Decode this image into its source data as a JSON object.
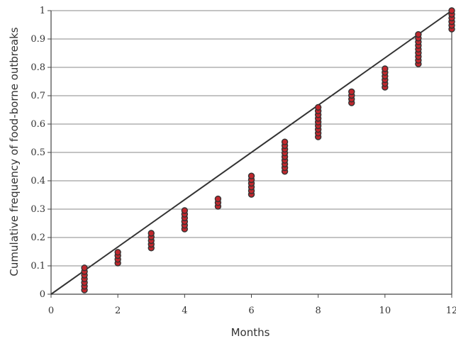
{
  "chart_data": {
    "type": "scatter",
    "xlabel": "Months",
    "ylabel": "Cumulative frequency of food-borne outbreaks",
    "xlim": [
      0,
      12
    ],
    "ylim": [
      0,
      1
    ],
    "x_ticks": [
      0,
      2,
      4,
      6,
      8,
      10,
      12
    ],
    "y_ticks": [
      0,
      0.1,
      0.2,
      0.3,
      0.4,
      0.5,
      0.6,
      0.7,
      0.8,
      0.9,
      1
    ],
    "x_tick_labels": [
      "0",
      "2",
      "4",
      "6",
      "8",
      "10",
      "12"
    ],
    "y_tick_labels": [
      "0",
      "0.1",
      "0.2",
      "0.3",
      "0.4",
      "0.5",
      "0.6",
      "0.7",
      "0.8",
      "0.9",
      "1"
    ],
    "grid": "horizontal",
    "reference_line": {
      "x": [
        0,
        12
      ],
      "y": [
        0,
        1
      ],
      "color": "#333333"
    },
    "marker_fill": "#c0272d",
    "marker_edge": "#333333",
    "series": [
      {
        "points": [
          {
            "x": 1,
            "y": 0.015
          },
          {
            "x": 1,
            "y": 0.028
          },
          {
            "x": 1,
            "y": 0.041
          },
          {
            "x": 1,
            "y": 0.054
          },
          {
            "x": 1,
            "y": 0.067
          },
          {
            "x": 1,
            "y": 0.08
          },
          {
            "x": 1,
            "y": 0.093
          },
          {
            "x": 2,
            "y": 0.11
          },
          {
            "x": 2,
            "y": 0.123
          },
          {
            "x": 2,
            "y": 0.136
          },
          {
            "x": 2,
            "y": 0.148
          },
          {
            "x": 3,
            "y": 0.163
          },
          {
            "x": 3,
            "y": 0.176
          },
          {
            "x": 3,
            "y": 0.189
          },
          {
            "x": 3,
            "y": 0.202
          },
          {
            "x": 3,
            "y": 0.215
          },
          {
            "x": 4,
            "y": 0.23
          },
          {
            "x": 4,
            "y": 0.243
          },
          {
            "x": 4,
            "y": 0.256
          },
          {
            "x": 4,
            "y": 0.269
          },
          {
            "x": 4,
            "y": 0.282
          },
          {
            "x": 4,
            "y": 0.295
          },
          {
            "x": 5,
            "y": 0.31
          },
          {
            "x": 5,
            "y": 0.323
          },
          {
            "x": 5,
            "y": 0.336
          },
          {
            "x": 6,
            "y": 0.352
          },
          {
            "x": 6,
            "y": 0.365
          },
          {
            "x": 6,
            "y": 0.378
          },
          {
            "x": 6,
            "y": 0.391
          },
          {
            "x": 6,
            "y": 0.404
          },
          {
            "x": 6,
            "y": 0.417
          },
          {
            "x": 7,
            "y": 0.433
          },
          {
            "x": 7,
            "y": 0.446
          },
          {
            "x": 7,
            "y": 0.459
          },
          {
            "x": 7,
            "y": 0.472
          },
          {
            "x": 7,
            "y": 0.485
          },
          {
            "x": 7,
            "y": 0.498
          },
          {
            "x": 7,
            "y": 0.511
          },
          {
            "x": 7,
            "y": 0.524
          },
          {
            "x": 7,
            "y": 0.537
          },
          {
            "x": 8,
            "y": 0.555
          },
          {
            "x": 8,
            "y": 0.568
          },
          {
            "x": 8,
            "y": 0.581
          },
          {
            "x": 8,
            "y": 0.594
          },
          {
            "x": 8,
            "y": 0.607
          },
          {
            "x": 8,
            "y": 0.62
          },
          {
            "x": 8,
            "y": 0.633
          },
          {
            "x": 8,
            "y": 0.646
          },
          {
            "x": 8,
            "y": 0.659
          },
          {
            "x": 9,
            "y": 0.675
          },
          {
            "x": 9,
            "y": 0.688
          },
          {
            "x": 9,
            "y": 0.701
          },
          {
            "x": 9,
            "y": 0.714
          },
          {
            "x": 10,
            "y": 0.73
          },
          {
            "x": 10,
            "y": 0.743
          },
          {
            "x": 10,
            "y": 0.756
          },
          {
            "x": 10,
            "y": 0.769
          },
          {
            "x": 10,
            "y": 0.782
          },
          {
            "x": 10,
            "y": 0.795
          },
          {
            "x": 11,
            "y": 0.812
          },
          {
            "x": 11,
            "y": 0.825
          },
          {
            "x": 11,
            "y": 0.838
          },
          {
            "x": 11,
            "y": 0.851
          },
          {
            "x": 11,
            "y": 0.864
          },
          {
            "x": 11,
            "y": 0.877
          },
          {
            "x": 11,
            "y": 0.89
          },
          {
            "x": 11,
            "y": 0.903
          },
          {
            "x": 11,
            "y": 0.916
          },
          {
            "x": 12,
            "y": 0.935
          },
          {
            "x": 12,
            "y": 0.948
          },
          {
            "x": 12,
            "y": 0.961
          },
          {
            "x": 12,
            "y": 0.974
          },
          {
            "x": 12,
            "y": 0.987
          },
          {
            "x": 12,
            "y": 1.0
          }
        ]
      }
    ]
  }
}
